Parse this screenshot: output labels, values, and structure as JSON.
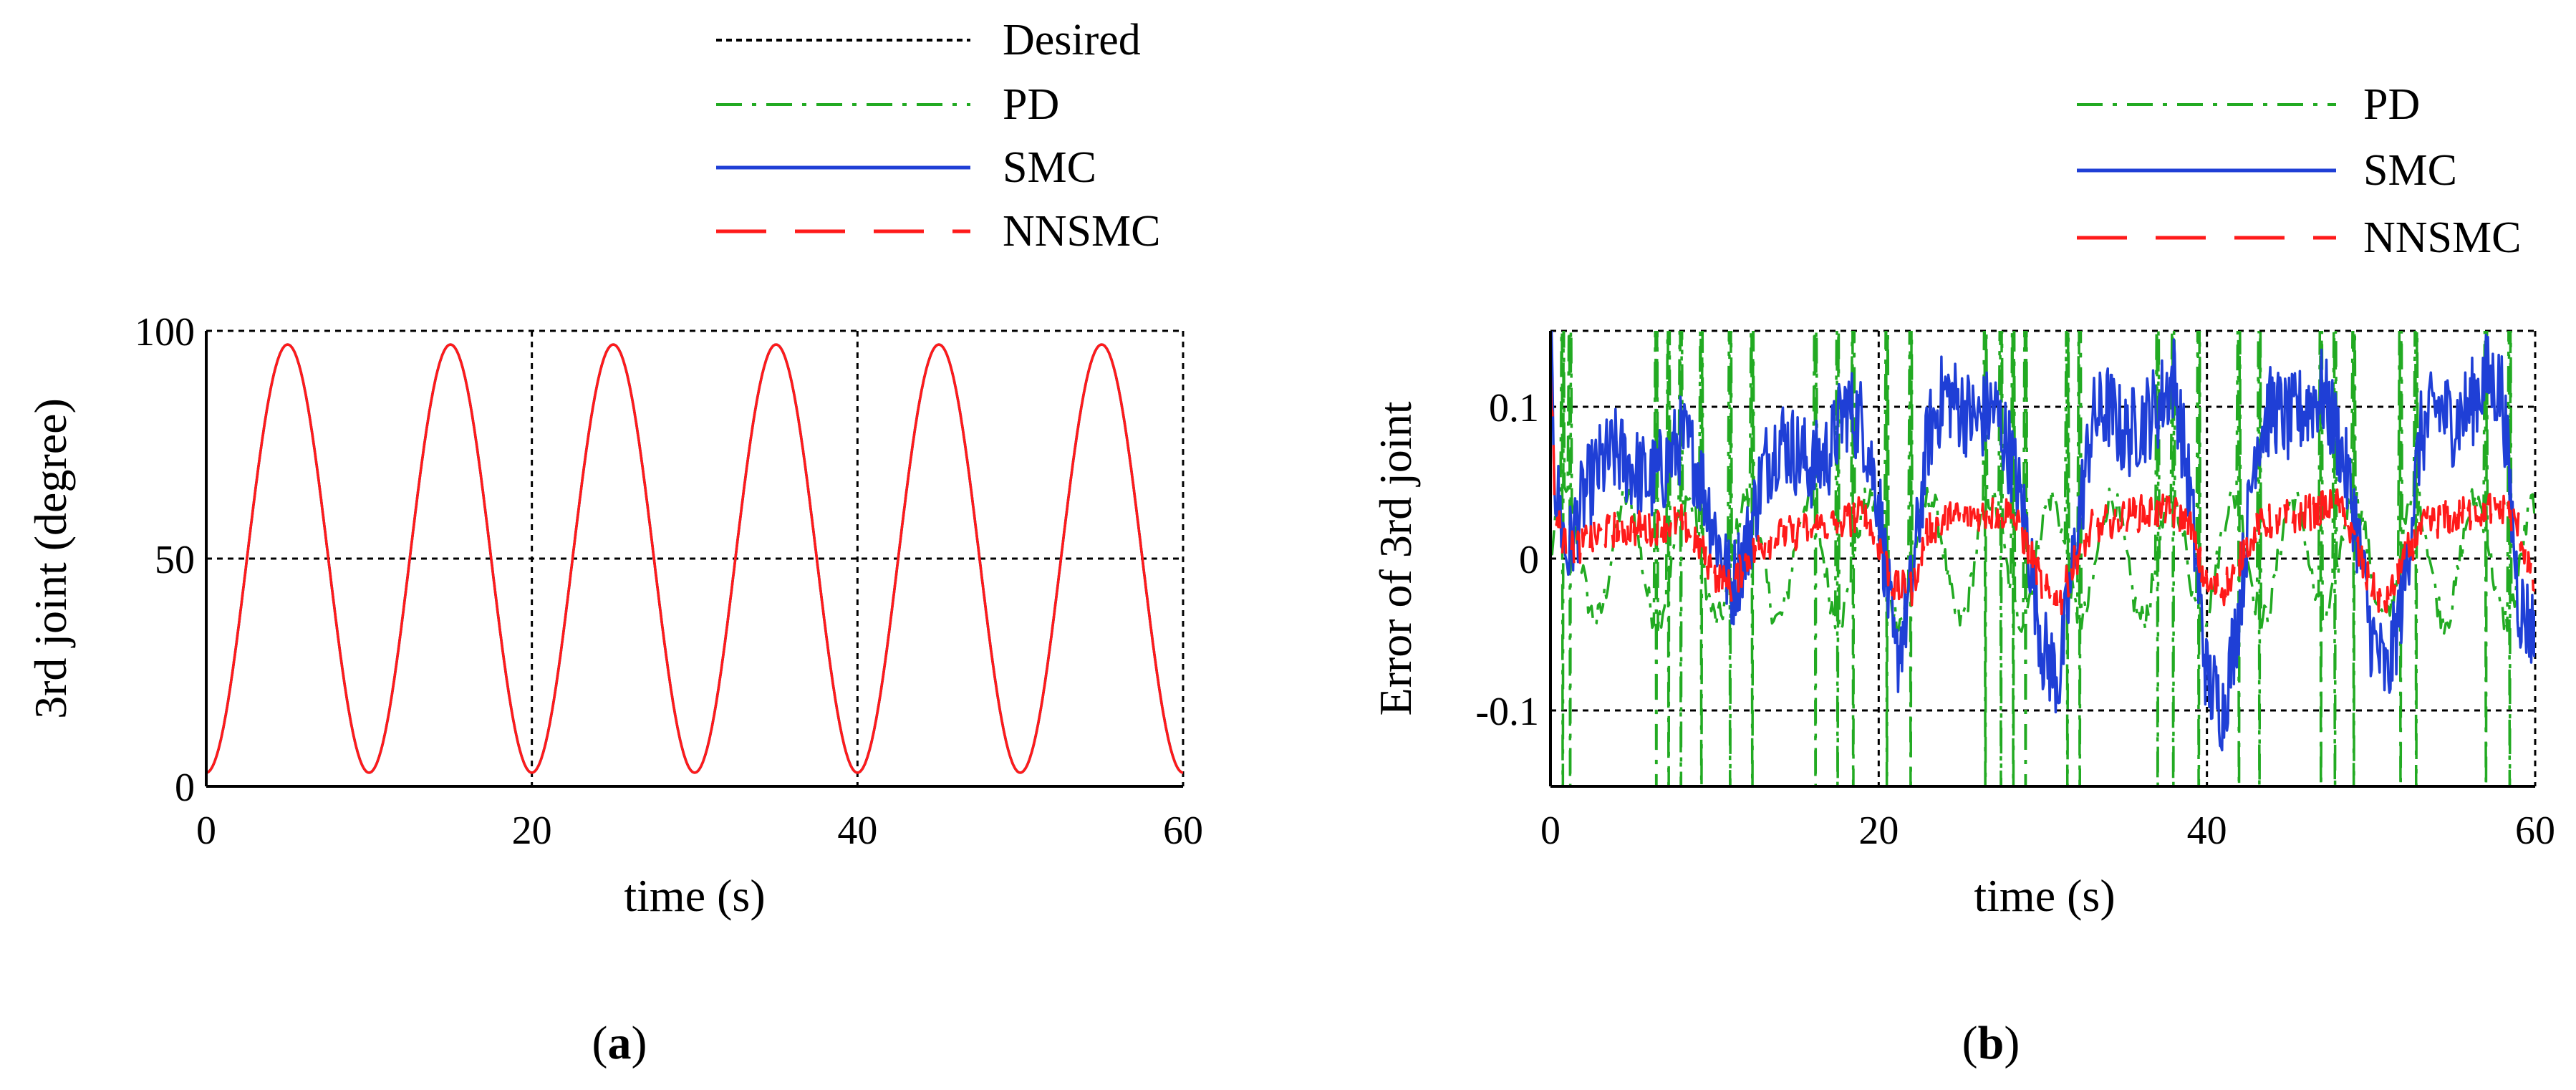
{
  "colors": {
    "desired": "#000000",
    "pd": "#22aa22",
    "smc": "#1f3fd6",
    "nnsmc": "#ff1a1a",
    "grid": "#000000"
  },
  "chart_data": [
    {
      "id": "a",
      "type": "line",
      "caption": "(a)",
      "caption_letter": "a",
      "xlabel": "time (s)",
      "ylabel": "3rd joint (degree)",
      "xlim": [
        0,
        60
      ],
      "ylim": [
        0,
        100
      ],
      "xticks": [
        "0",
        "20",
        "40",
        "60"
      ],
      "xtick_values": [
        0,
        20,
        40,
        60
      ],
      "yticks": [
        "0",
        "50",
        "100"
      ],
      "ytick_values": [
        0,
        50,
        100
      ],
      "legend": [
        "Desired",
        "PD",
        "SMC",
        "NNSMC"
      ],
      "series": [
        {
          "name": "Desired",
          "style": "dotted",
          "model": "sine",
          "offset": 50,
          "amplitude": 47,
          "period": 10,
          "phase_deg": -90
        },
        {
          "name": "PD",
          "style": "dashdot",
          "model": "sine",
          "offset": 50,
          "amplitude": 47,
          "period": 10,
          "phase_deg": -90
        },
        {
          "name": "SMC",
          "style": "solid",
          "model": "sine",
          "offset": 50,
          "amplitude": 47,
          "period": 10,
          "phase_deg": -90
        },
        {
          "name": "NNSMC",
          "style": "dashed",
          "model": "sine",
          "offset": 50,
          "amplitude": 47,
          "period": 10,
          "phase_deg": -90
        }
      ]
    },
    {
      "id": "b",
      "type": "line",
      "caption": "(b)",
      "caption_letter": "b",
      "xlabel": "time (s)",
      "ylabel": "Error of 3rd joint",
      "xlim": [
        0,
        60
      ],
      "ylim": [
        -0.15,
        0.15
      ],
      "xticks": [
        "0",
        "20",
        "40",
        "60"
      ],
      "xtick_values": [
        0,
        20,
        40,
        60
      ],
      "yticks": [
        "-0.1",
        "0",
        "0.1"
      ],
      "ytick_values": [
        -0.1,
        0,
        0.1
      ],
      "legend": [
        "PD",
        "SMC",
        "NNSMC"
      ],
      "series": [
        {
          "name": "PD",
          "style": "dashdot",
          "description": "large oscillating error exceeding the axis limits (±0.15)",
          "spikes_at": [
            0.8,
            1.2,
            6.5,
            7.2,
            8.0,
            9.2,
            11.0,
            12.3,
            16.2,
            17.5,
            18.5,
            20.5,
            22.0,
            26.5,
            27.5,
            28.2,
            29.0,
            31.5,
            32.3,
            37.0,
            38.0,
            39.5,
            42.0,
            43.2,
            47.0,
            47.8,
            49.0,
            51.8,
            52.8,
            57.0,
            58.5
          ]
        },
        {
          "name": "SMC",
          "style": "solid",
          "x": [
            0,
            0.3,
            1.0,
            2.0,
            3.0,
            4.0,
            5.0,
            6.0,
            7.0,
            8.0,
            9.0,
            10.0,
            11.0,
            12.0,
            13.0,
            14.0,
            15.0,
            16.0,
            17.0,
            18.0,
            19.0,
            20.0,
            21.0,
            22.0,
            23.0,
            24.0,
            25.0,
            26.0,
            27.0,
            28.0,
            29.0,
            30.0,
            31.0,
            32.0,
            33.0,
            34.0,
            35.0,
            36.0,
            37.0,
            38.0,
            39.0,
            40.0,
            41.0,
            42.0,
            43.0,
            44.0,
            45.0,
            46.0,
            47.0,
            48.0,
            49.0,
            50.0,
            51.0,
            52.0,
            53.0,
            54.0,
            55.0,
            56.0,
            57.0,
            58.0,
            59.0,
            60.0
          ],
          "y": [
            0.14,
            0.05,
            0.0,
            0.04,
            0.06,
            0.07,
            0.06,
            0.05,
            0.06,
            0.08,
            0.06,
            0.02,
            -0.02,
            0.01,
            0.06,
            0.08,
            0.07,
            0.06,
            0.07,
            0.1,
            0.09,
            0.04,
            -0.07,
            -0.02,
            0.08,
            0.11,
            0.1,
            0.09,
            0.1,
            0.07,
            0.02,
            -0.06,
            -0.08,
            0.01,
            0.09,
            0.1,
            0.08,
            0.09,
            0.1,
            0.12,
            0.04,
            -0.08,
            -0.1,
            -0.03,
            0.08,
            0.1,
            0.09,
            0.1,
            0.11,
            0.08,
            0.03,
            -0.05,
            -0.08,
            -0.02,
            0.08,
            0.1,
            0.09,
            0.1,
            0.12,
            0.11,
            -0.03,
            -0.05
          ],
          "noise_amp": 0.03
        },
        {
          "name": "NNSMC",
          "style": "dashed",
          "x": [
            0,
            0.3,
            1.0,
            2.0,
            4.0,
            6.0,
            8.0,
            9.0,
            10.0,
            11.0,
            12.0,
            13.0,
            14.0,
            16.0,
            18.0,
            19.0,
            20.0,
            21.0,
            22.0,
            23.0,
            24.0,
            26.0,
            28.0,
            29.0,
            30.0,
            31.0,
            32.0,
            33.0,
            34.0,
            36.0,
            38.0,
            39.0,
            40.0,
            41.0,
            42.0,
            43.0,
            44.0,
            46.0,
            48.0,
            49.0,
            50.0,
            51.0,
            52.0,
            53.0,
            54.0,
            56.0,
            58.0,
            59.0,
            60.0
          ],
          "y": [
            0.13,
            0.03,
            0.005,
            0.01,
            0.02,
            0.02,
            0.025,
            0.01,
            -0.01,
            -0.02,
            0.0,
            0.01,
            0.015,
            0.02,
            0.025,
            0.03,
            0.01,
            -0.02,
            -0.02,
            0.02,
            0.025,
            0.03,
            0.03,
            0.01,
            -0.02,
            -0.03,
            0.0,
            0.02,
            0.025,
            0.03,
            0.03,
            0.02,
            -0.02,
            -0.02,
            0.0,
            0.02,
            0.025,
            0.03,
            0.035,
            0.01,
            -0.02,
            -0.03,
            0.0,
            0.02,
            0.025,
            0.03,
            0.035,
            0.02,
            -0.02
          ],
          "noise_amp": 0.012
        }
      ]
    }
  ]
}
